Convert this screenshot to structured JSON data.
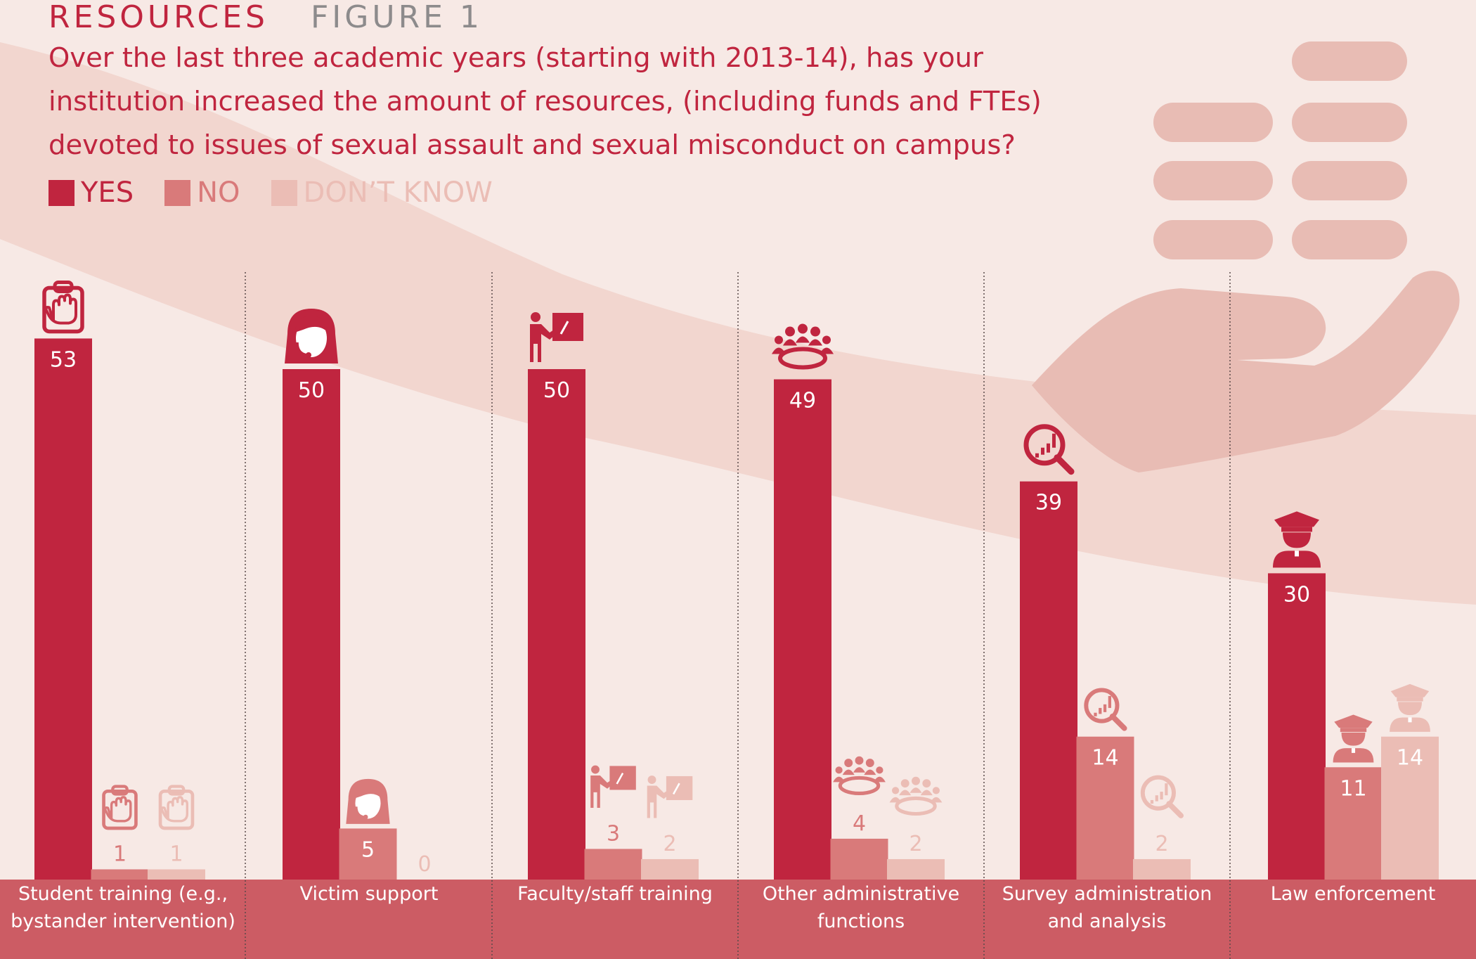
{
  "header": {
    "section": "RESOURCES",
    "figure": "FIGURE 1",
    "question": "Over the last three academic years (starting with 2013-14), has your institution increased the amount of resources, (including funds and FTEs) devoted to issues of sexual assault and sexual misconduct on campus?"
  },
  "colors": {
    "yes": "#c0253f",
    "no": "#d97a7a",
    "dont_know": "#ebbdb5",
    "band": "#cc5c64",
    "background": "#f7e9e5"
  },
  "chart_data": {
    "type": "bar",
    "categories": [
      "Student training (e.g., bystander intervention)",
      "Victim support",
      "Faculty/staff training",
      "Other administrative functions",
      "Survey administration and analysis",
      "Law enforcement"
    ],
    "category_icons": [
      "clipboard-hand-icon",
      "person-headset-icon",
      "presenter-icon",
      "meeting-group-icon",
      "magnifier-chart-icon",
      "police-officer-icon"
    ],
    "series": [
      {
        "name": "YES",
        "values": [
          53,
          50,
          50,
          49,
          39,
          30
        ]
      },
      {
        "name": "NO",
        "values": [
          1,
          5,
          3,
          4,
          14,
          11
        ]
      },
      {
        "name": "DON’T KNOW",
        "values": [
          1,
          0,
          2,
          2,
          2,
          14
        ]
      }
    ],
    "ylim": [
      0,
      60
    ],
    "grid": false,
    "legend": "top-left",
    "title": "Over the last three academic years (starting with 2013-14), has your institution increased the amount of resources, (including funds and FTEs) devoted to issues of sexual assault and sexual misconduct on campus?"
  }
}
